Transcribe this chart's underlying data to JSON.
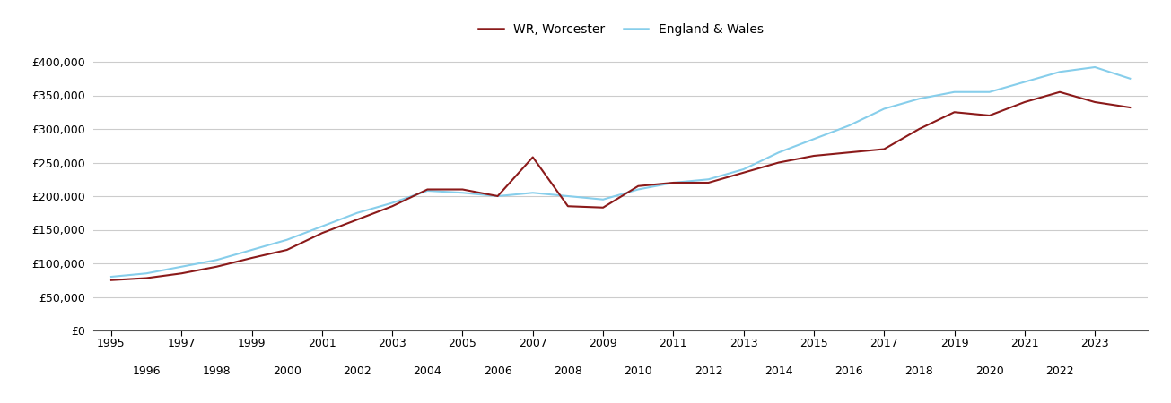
{
  "wr_worcester": {
    "years": [
      1995,
      1996,
      1997,
      1998,
      1999,
      2000,
      2001,
      2002,
      2003,
      2004,
      2005,
      2006,
      2007,
      2008,
      2009,
      2010,
      2011,
      2012,
      2013,
      2014,
      2015,
      2016,
      2017,
      2018,
      2019,
      2020,
      2021,
      2022,
      2023,
      2024
    ],
    "values": [
      75000,
      78000,
      85000,
      95000,
      108000,
      120000,
      145000,
      165000,
      185000,
      210000,
      210000,
      200000,
      258000,
      185000,
      183000,
      215000,
      220000,
      220000,
      235000,
      250000,
      260000,
      265000,
      270000,
      300000,
      325000,
      320000,
      340000,
      355000,
      340000,
      332000
    ]
  },
  "england_wales": {
    "years": [
      1995,
      1996,
      1997,
      1998,
      1999,
      2000,
      2001,
      2002,
      2003,
      2004,
      2005,
      2006,
      2007,
      2008,
      2009,
      2010,
      2011,
      2012,
      2013,
      2014,
      2015,
      2016,
      2017,
      2018,
      2019,
      2020,
      2021,
      2022,
      2023,
      2024
    ],
    "values": [
      80000,
      85000,
      95000,
      105000,
      120000,
      135000,
      155000,
      175000,
      190000,
      208000,
      205000,
      200000,
      205000,
      200000,
      195000,
      210000,
      220000,
      225000,
      240000,
      265000,
      285000,
      305000,
      330000,
      345000,
      355000,
      355000,
      370000,
      385000,
      392000,
      375000
    ]
  },
  "wr_color": "#8B1A1A",
  "ew_color": "#87CEEB",
  "background_color": "#ffffff",
  "grid_color": "#cccccc",
  "legend_labels": [
    "WR, Worcester",
    "England & Wales"
  ],
  "ylim": [
    0,
    420000
  ],
  "yticks": [
    0,
    50000,
    100000,
    150000,
    200000,
    250000,
    300000,
    350000,
    400000
  ],
  "xlim": [
    1994.5,
    2024.5
  ],
  "xticks_row1": [
    1995,
    1997,
    1999,
    2001,
    2003,
    2005,
    2007,
    2009,
    2011,
    2013,
    2015,
    2017,
    2019,
    2021,
    2023
  ],
  "xticks_row2": [
    1996,
    1998,
    2000,
    2002,
    2004,
    2006,
    2008,
    2010,
    2012,
    2014,
    2016,
    2018,
    2020,
    2022
  ]
}
